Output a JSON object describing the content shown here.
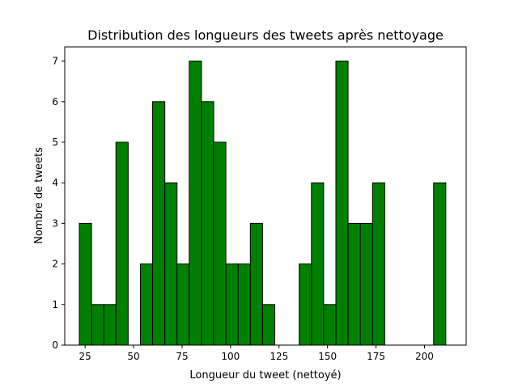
{
  "chart_data": {
    "type": "bar",
    "title": "Distribution des longueurs des tweets après nettoyage",
    "xlabel": "Longueur du tweet (nettoyé)",
    "ylabel": "Nombre de tweets",
    "xlim": [
      14.5,
      221.5
    ],
    "ylim": [
      0,
      7.35
    ],
    "xticks": [
      25,
      50,
      75,
      100,
      125,
      150,
      175,
      200
    ],
    "yticks": [
      0,
      1,
      2,
      3,
      4,
      5,
      6,
      7
    ],
    "bar_color": "#008000",
    "edge_color": "#000000",
    "grid": false,
    "bins": [
      {
        "x0": 22.0,
        "x1": 28.3,
        "count": 3
      },
      {
        "x0": 28.3,
        "x1": 34.6,
        "count": 1
      },
      {
        "x0": 34.6,
        "x1": 40.9,
        "count": 1
      },
      {
        "x0": 40.9,
        "x1": 47.2,
        "count": 5
      },
      {
        "x0": 47.2,
        "x1": 53.5,
        "count": 0
      },
      {
        "x0": 53.5,
        "x1": 59.8,
        "count": 2
      },
      {
        "x0": 59.8,
        "x1": 66.1,
        "count": 6
      },
      {
        "x0": 66.1,
        "x1": 72.4,
        "count": 4
      },
      {
        "x0": 72.4,
        "x1": 78.7,
        "count": 2
      },
      {
        "x0": 78.7,
        "x1": 85.0,
        "count": 7
      },
      {
        "x0": 85.0,
        "x1": 91.3,
        "count": 6
      },
      {
        "x0": 91.3,
        "x1": 97.6,
        "count": 5
      },
      {
        "x0": 97.6,
        "x1": 103.9,
        "count": 2
      },
      {
        "x0": 103.9,
        "x1": 110.2,
        "count": 2
      },
      {
        "x0": 110.2,
        "x1": 116.5,
        "count": 3
      },
      {
        "x0": 116.5,
        "x1": 122.8,
        "count": 1
      },
      {
        "x0": 122.8,
        "x1": 129.1,
        "count": 0
      },
      {
        "x0": 129.1,
        "x1": 135.4,
        "count": 0
      },
      {
        "x0": 135.4,
        "x1": 141.7,
        "count": 2
      },
      {
        "x0": 141.7,
        "x1": 148.0,
        "count": 4
      },
      {
        "x0": 148.0,
        "x1": 154.3,
        "count": 1
      },
      {
        "x0": 154.3,
        "x1": 160.6,
        "count": 7
      },
      {
        "x0": 160.6,
        "x1": 166.9,
        "count": 3
      },
      {
        "x0": 166.9,
        "x1": 173.2,
        "count": 3
      },
      {
        "x0": 173.2,
        "x1": 179.5,
        "count": 4
      },
      {
        "x0": 179.5,
        "x1": 185.8,
        "count": 0
      },
      {
        "x0": 185.8,
        "x1": 192.1,
        "count": 0
      },
      {
        "x0": 192.1,
        "x1": 198.4,
        "count": 0
      },
      {
        "x0": 198.4,
        "x1": 204.7,
        "count": 0
      },
      {
        "x0": 204.7,
        "x1": 211.0,
        "count": 4
      }
    ]
  }
}
